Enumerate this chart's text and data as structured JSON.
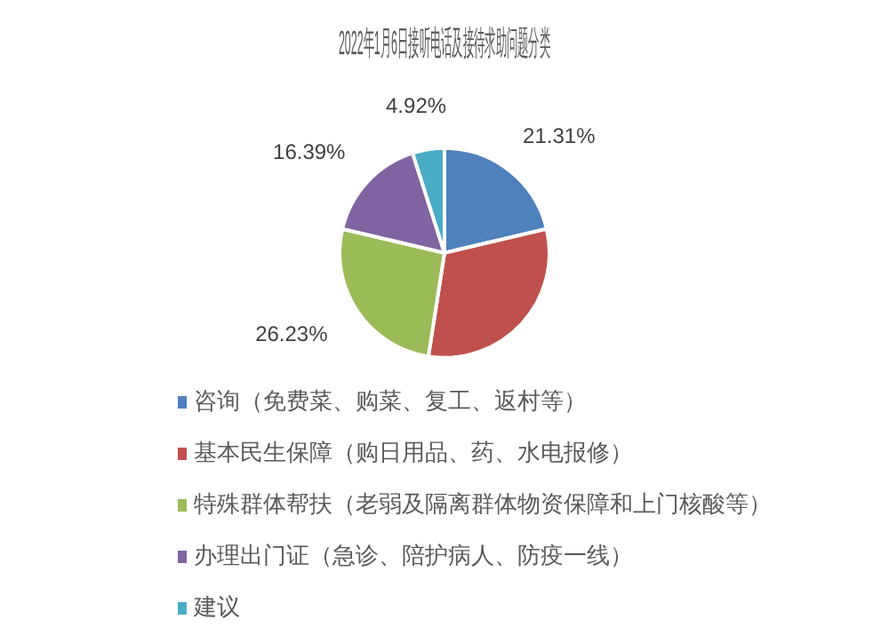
{
  "chart_data": {
    "type": "pie",
    "title": "2022年1月6日接听电话及接待求助问题分类",
    "categories": [
      "咨询（免费菜、购菜、复工、返村等）",
      "基本民生保障（购日用品、药、水电报修）",
      "特殊群体帮扶（老弱及隔离群体物资保障和上门核酸等）",
      "办理出门证（急诊、陪护病人、防疫一线）",
      "建议"
    ],
    "values": [
      21.31,
      31.15,
      26.23,
      16.39,
      4.92
    ],
    "colors": [
      "#4f81bd",
      "#c0504d",
      "#9bbb59",
      "#8064a2",
      "#4bacc6"
    ],
    "value_labels": [
      "21.31%",
      null,
      "26.23%",
      "16.39%",
      "4.92%"
    ],
    "legend": "bottom"
  }
}
